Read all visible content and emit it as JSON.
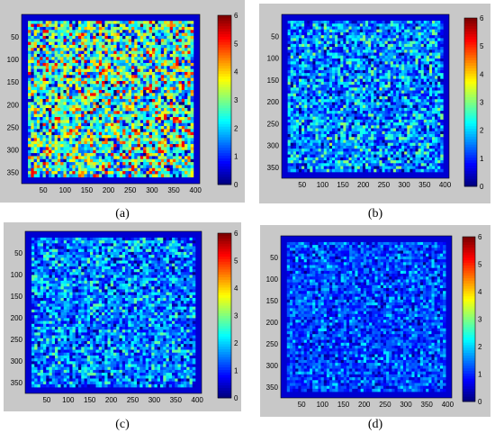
{
  "chart_data": [
    {
      "type": "heatmap",
      "label": "(a)",
      "x_ticks": [
        50,
        100,
        150,
        200,
        250,
        300,
        350,
        400
      ],
      "y_ticks": [
        50,
        100,
        150,
        200,
        250,
        300,
        350
      ],
      "xlim": [
        0,
        410
      ],
      "ylim": [
        0,
        375
      ],
      "colorbar": {
        "min": 0,
        "max": 6,
        "ticks": [
          0,
          1,
          2,
          3,
          4,
          5,
          6
        ]
      },
      "mean_value": 2.6,
      "spread": 1.2
    },
    {
      "type": "heatmap",
      "label": "(b)",
      "x_ticks": [
        50,
        100,
        150,
        200,
        250,
        300,
        350,
        400
      ],
      "y_ticks": [
        50,
        100,
        150,
        200,
        250,
        300,
        350
      ],
      "xlim": [
        0,
        410
      ],
      "ylim": [
        0,
        375
      ],
      "colorbar": {
        "min": 0,
        "max": 6,
        "ticks": [
          0,
          1,
          2,
          3,
          4,
          5,
          6
        ]
      },
      "mean_value": 1.5,
      "spread": 0.7
    },
    {
      "type": "heatmap",
      "label": "(c)",
      "x_ticks": [
        50,
        100,
        150,
        200,
        250,
        300,
        350,
        400
      ],
      "y_ticks": [
        50,
        100,
        150,
        200,
        250,
        300,
        350
      ],
      "xlim": [
        0,
        410
      ],
      "ylim": [
        0,
        375
      ],
      "colorbar": {
        "min": 0,
        "max": 6,
        "ticks": [
          0,
          1,
          2,
          3,
          4,
          5,
          6
        ]
      },
      "mean_value": 1.4,
      "spread": 0.65
    },
    {
      "type": "heatmap",
      "label": "(d)",
      "x_ticks": [
        50,
        100,
        150,
        200,
        250,
        300,
        350,
        400
      ],
      "y_ticks": [
        50,
        100,
        150,
        200,
        250,
        300,
        350
      ],
      "xlim": [
        0,
        410
      ],
      "ylim": [
        0,
        375
      ],
      "colorbar": {
        "min": 0,
        "max": 6,
        "ticks": [
          0,
          1,
          2,
          3,
          4,
          5,
          6
        ]
      },
      "mean_value": 1.1,
      "spread": 0.45
    }
  ]
}
